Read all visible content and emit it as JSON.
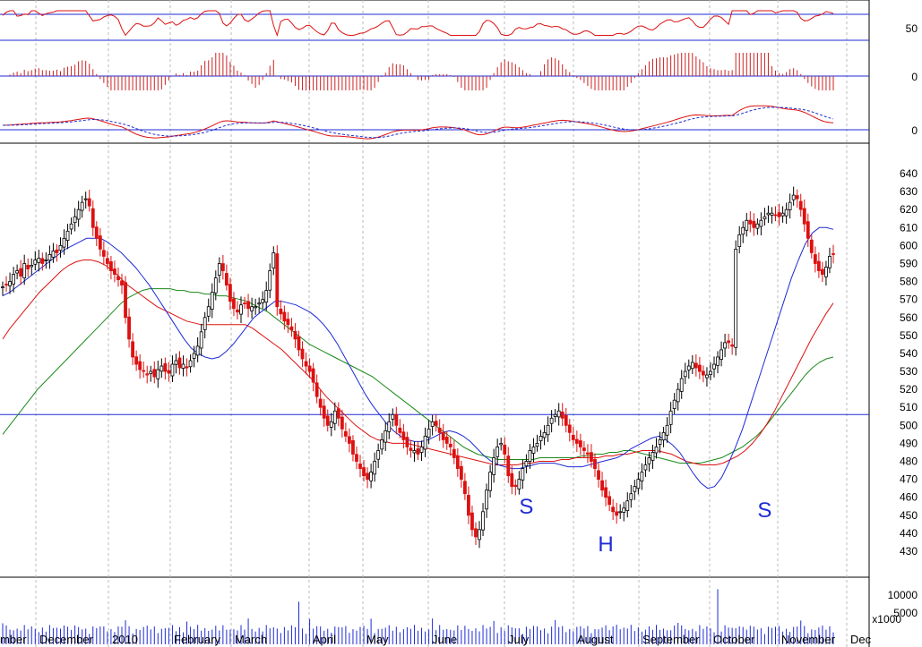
{
  "chart_data": {
    "type": "candlestick",
    "title": "",
    "x_months": [
      "mber",
      "December",
      "2010",
      "February",
      "March",
      "April",
      "May",
      "June",
      "July",
      "August",
      "September",
      "October",
      "November",
      "Dec"
    ],
    "price": {
      "ylim": [
        420,
        645
      ],
      "yticks": [
        430,
        440,
        450,
        460,
        470,
        480,
        490,
        500,
        510,
        520,
        530,
        540,
        550,
        560,
        570,
        580,
        590,
        600,
        610,
        620,
        630,
        640
      ],
      "horizontal_line": 506,
      "close_series": [
        577,
        578,
        580,
        584,
        586,
        583,
        590,
        587,
        589,
        592,
        593,
        590,
        592,
        595,
        597,
        596,
        600,
        604,
        608,
        612,
        616,
        620,
        624,
        626,
        622,
        610,
        604,
        598,
        594,
        590,
        586,
        584,
        581,
        578,
        560,
        548,
        538,
        534,
        531,
        530,
        528,
        530,
        527,
        531,
        533,
        530,
        529,
        534,
        536,
        532,
        534,
        532,
        536,
        540,
        544,
        552,
        560,
        566,
        574,
        582,
        590,
        586,
        578,
        569,
        565,
        563,
        567,
        568,
        565,
        566,
        566,
        568,
        570,
        575,
        586,
        596,
        566,
        562,
        558,
        556,
        553,
        548,
        542,
        537,
        533,
        530,
        524,
        516,
        510,
        504,
        500,
        502,
        508,
        504,
        498,
        494,
        490,
        484,
        480,
        476,
        472,
        470,
        474,
        480,
        486,
        492,
        497,
        502,
        506,
        500,
        496,
        492,
        488,
        486,
        486,
        484,
        488,
        494,
        498,
        502,
        500,
        496,
        492,
        490,
        488,
        482,
        476,
        470,
        462,
        450,
        442,
        438,
        442,
        452,
        464,
        474,
        482,
        488,
        490,
        484,
        472,
        466,
        466,
        470,
        476,
        480,
        486,
        488,
        490,
        494,
        496,
        500,
        504,
        506,
        508,
        504,
        500,
        496,
        492,
        490,
        488,
        486,
        484,
        480,
        476,
        470,
        464,
        460,
        456,
        452,
        450,
        452,
        454,
        458,
        462,
        466,
        470,
        474,
        478,
        482,
        485,
        488,
        492,
        496,
        500,
        508,
        514,
        520,
        526,
        530,
        533,
        535,
        532,
        530,
        528,
        528,
        530,
        534,
        538,
        542,
        546,
        546,
        544,
        598,
        606,
        610,
        614,
        612,
        610,
        612,
        614,
        616,
        618,
        618,
        617,
        616,
        618,
        620,
        624,
        628,
        626,
        620,
        612,
        604,
        596,
        590,
        586,
        584,
        588,
        594,
        595
      ],
      "sma_blue": [
        572,
        574,
        577,
        580,
        583,
        586,
        589,
        592,
        595,
        598,
        600,
        602,
        604,
        604,
        604,
        602,
        599,
        596,
        592,
        588,
        583,
        578,
        572,
        566,
        560,
        554,
        548,
        543,
        540,
        538,
        537,
        538,
        541,
        545,
        550,
        555,
        560,
        563,
        566,
        569,
        569,
        568,
        567,
        565,
        563,
        560,
        556,
        551,
        545,
        538,
        531,
        524,
        517,
        511,
        506,
        501,
        497,
        494,
        492,
        491,
        491,
        492,
        494,
        496,
        497,
        496,
        494,
        491,
        487,
        483,
        480,
        478,
        477,
        476,
        476,
        477,
        478,
        479,
        479,
        479,
        478,
        477,
        477,
        477,
        478,
        479,
        480,
        481,
        482,
        484,
        487,
        489,
        491,
        493,
        494,
        492,
        489,
        485,
        479,
        473,
        468,
        465,
        466,
        471,
        479,
        488,
        498,
        510,
        522,
        534,
        546,
        558,
        570,
        582,
        592,
        601,
        607,
        610,
        610,
        609
      ],
      "sma_red": [
        548,
        554,
        559,
        564,
        569,
        574,
        578,
        582,
        586,
        589,
        591,
        592,
        592,
        591,
        589,
        586,
        582,
        578,
        575,
        572,
        569,
        566,
        564,
        562,
        560,
        558,
        557,
        556,
        556,
        556,
        556,
        556,
        556,
        556,
        554,
        551,
        548,
        545,
        542,
        538,
        534,
        530,
        526,
        521,
        516,
        512,
        508,
        504,
        500,
        497,
        494,
        492,
        491,
        490,
        490,
        490,
        489,
        488,
        487,
        486,
        485,
        484,
        483,
        482,
        481,
        480,
        479,
        478,
        478,
        478,
        478,
        479,
        479,
        480,
        480,
        480,
        481,
        481,
        482,
        482,
        482,
        482,
        483,
        483,
        484,
        484,
        485,
        486,
        486,
        486,
        485,
        484,
        482,
        480,
        479,
        478,
        478,
        478,
        479,
        481,
        483,
        486,
        490,
        495,
        501,
        508,
        516,
        524,
        532,
        540,
        548,
        555,
        562,
        568
      ],
      "sma_green": [
        495,
        500,
        505,
        510,
        515,
        520,
        524,
        528,
        532,
        536,
        540,
        544,
        548,
        552,
        556,
        560,
        564,
        568,
        571,
        573,
        575,
        576,
        576,
        576,
        576,
        575,
        575,
        574,
        574,
        573,
        573,
        572,
        572,
        571,
        570,
        569,
        567,
        565,
        563,
        560,
        557,
        554,
        551,
        548,
        545,
        543,
        541,
        539,
        537,
        535,
        533,
        531,
        529,
        527,
        524,
        521,
        518,
        515,
        512,
        509,
        506,
        503,
        500,
        497,
        494,
        491,
        488,
        486,
        484,
        483,
        482,
        481,
        481,
        481,
        481,
        481,
        481,
        482,
        482,
        482,
        482,
        482,
        482,
        483,
        483,
        484,
        484,
        485,
        485,
        486,
        486,
        485,
        484,
        483,
        482,
        481,
        480,
        479,
        479,
        479,
        479,
        480,
        481,
        482,
        484,
        486,
        488,
        491,
        494,
        498,
        503,
        508,
        513,
        518,
        523,
        528,
        532,
        535,
        537,
        538
      ]
    },
    "rsi": {
      "ylim": [
        0,
        100
      ],
      "yticks": [
        50
      ],
      "levels": [
        30,
        70
      ]
    },
    "momentum": {
      "yticks": [
        0
      ]
    },
    "macd": {
      "yticks": [
        0
      ]
    },
    "volume": {
      "ylim": [
        0,
        12500
      ],
      "yticks": [
        5000,
        10000
      ],
      "unit_label": "x1000"
    },
    "annotations": [
      {
        "text": "S",
        "date_index": 145,
        "price": 451
      },
      {
        "text": "H",
        "date_index": 167,
        "price": 430
      },
      {
        "text": "S",
        "date_index": 211,
        "price": 449
      }
    ]
  }
}
